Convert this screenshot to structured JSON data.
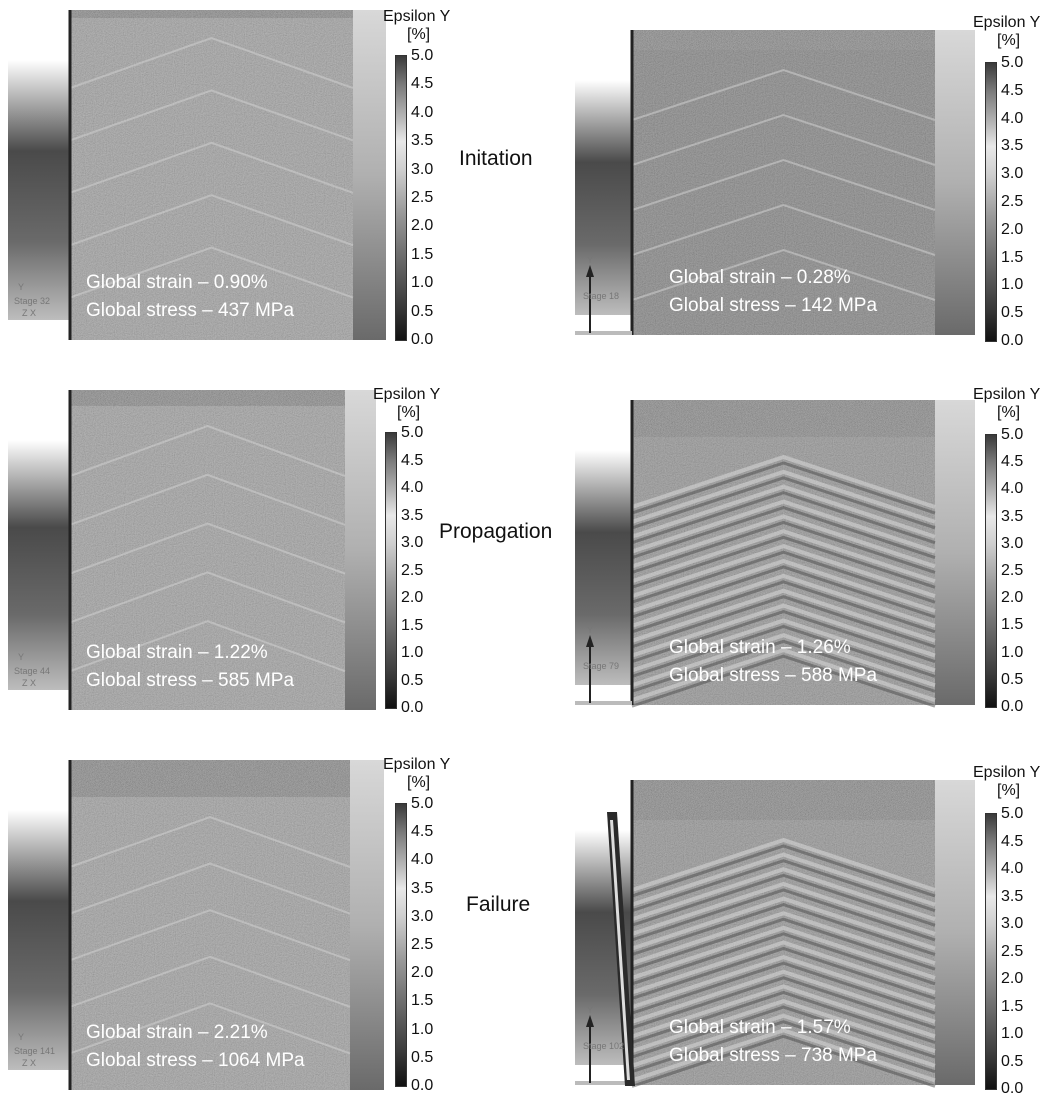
{
  "colorbar": {
    "title": "Epsilon Y",
    "unit": "[%]",
    "ticks": [
      "5.0",
      "4.5",
      "4.0",
      "3.5",
      "3.0",
      "2.5",
      "2.0",
      "1.5",
      "1.0",
      "0.5",
      "0.0"
    ]
  },
  "rows": [
    {
      "label": "Initation"
    },
    {
      "label": "Propagation"
    },
    {
      "label": "Failure"
    }
  ],
  "panels": [
    {
      "strain": "Global strain – 0.90%",
      "stress": "Global stress – 437 MPa",
      "stage": "Stage 32",
      "axis_y": "Y",
      "axis_zx": "Z      X"
    },
    {
      "strain": "Global strain – 0.28%",
      "stress": "Global stress – 142 MPa",
      "stage": "Stage 18",
      "axis_y": "Y",
      "axis_zx": ""
    },
    {
      "strain": "Global strain – 1.22%",
      "stress": "Global stress – 585 MPa",
      "stage": "Stage 44",
      "axis_y": "Y",
      "axis_zx": "Z      X"
    },
    {
      "strain": "Global strain – 1.26%",
      "stress": "Global stress – 588 MPa",
      "stage": "Stage 79",
      "axis_y": "Y",
      "axis_zx": ""
    },
    {
      "strain": "Global strain – 2.21%",
      "stress": "Global stress – 1064 MPa",
      "stage": "Stage 141",
      "axis_y": "Y",
      "axis_zx": "Z      X"
    },
    {
      "strain": "Global strain – 1.57%",
      "stress": "Global stress – 738 MPa",
      "stage": "Stage 102",
      "axis_y": "Y",
      "axis_zx": ""
    }
  ]
}
